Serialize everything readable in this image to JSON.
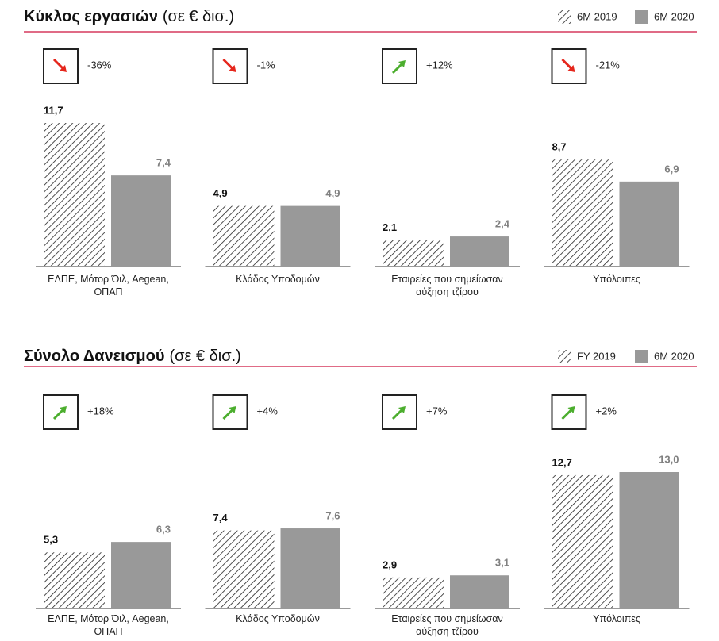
{
  "chart_data": [
    {
      "type": "bar",
      "title": "Κύκλος εργασιών",
      "title_unit": "(σε € δισ.)",
      "categories": [
        "ΕΛΠΕ, Μότορ Όιλ, Aegean, ΟΠΑΠ",
        "Κλάδος Υποδομών",
        "Εταιρείες που σημείωσαν αύξηση τζίρου",
        "Υπόλοιπες"
      ],
      "series": [
        {
          "name": "6M 2019",
          "color": "#222222",
          "pattern": "hatch",
          "label_color": "#111111",
          "values": [
            11.7,
            4.9,
            2.1,
            8.7
          ],
          "value_labels": [
            "11,7",
            "4,9",
            "2,1",
            "8,7"
          ]
        },
        {
          "name": "6M 2020",
          "color": "#999999",
          "label_color": "#808080",
          "values": [
            7.4,
            4.9,
            2.4,
            6.9
          ],
          "value_labels": [
            "7,4",
            "4,9",
            "2,4",
            "6,9"
          ]
        }
      ],
      "annotations": [
        {
          "text": "-36%",
          "direction": "down",
          "color": "#e5261c"
        },
        {
          "text": "-1%",
          "direction": "down",
          "color": "#e5261c"
        },
        {
          "text": "+12%",
          "direction": "up",
          "color": "#4cae2e"
        },
        {
          "text": "-21%",
          "direction": "down",
          "color": "#e5261c"
        }
      ]
    },
    {
      "type": "bar",
      "title": "Σύνολο Δανεισμού",
      "title_unit": "(σε € δισ.)",
      "categories": [
        "ΕΛΠΕ, Μότορ Όιλ, Aegean, ΟΠΑΠ",
        "Κλάδος Υποδομών",
        "Εταιρείες που σημείωσαν αύξηση τζίρου",
        "Υπόλοιπες"
      ],
      "series": [
        {
          "name": "FY 2019",
          "color": "#222222",
          "pattern": "hatch",
          "label_color": "#111111",
          "values": [
            5.3,
            7.4,
            2.9,
            12.7
          ],
          "value_labels": [
            "5,3",
            "7,4",
            "2,9",
            "12,7"
          ]
        },
        {
          "name": "6M 2020",
          "color": "#999999",
          "label_color": "#808080",
          "values": [
            6.3,
            7.6,
            3.1,
            13.0
          ],
          "value_labels": [
            "6,3",
            "7,6",
            "3,1",
            "13,0"
          ]
        }
      ],
      "annotations": [
        {
          "text": "+18%",
          "direction": "up",
          "color": "#4cae2e"
        },
        {
          "text": "+4%",
          "direction": "up",
          "color": "#4cae2e"
        },
        {
          "text": "+7%",
          "direction": "up",
          "color": "#4cae2e"
        },
        {
          "text": "+2%",
          "direction": "up",
          "color": "#4cae2e"
        }
      ]
    }
  ]
}
